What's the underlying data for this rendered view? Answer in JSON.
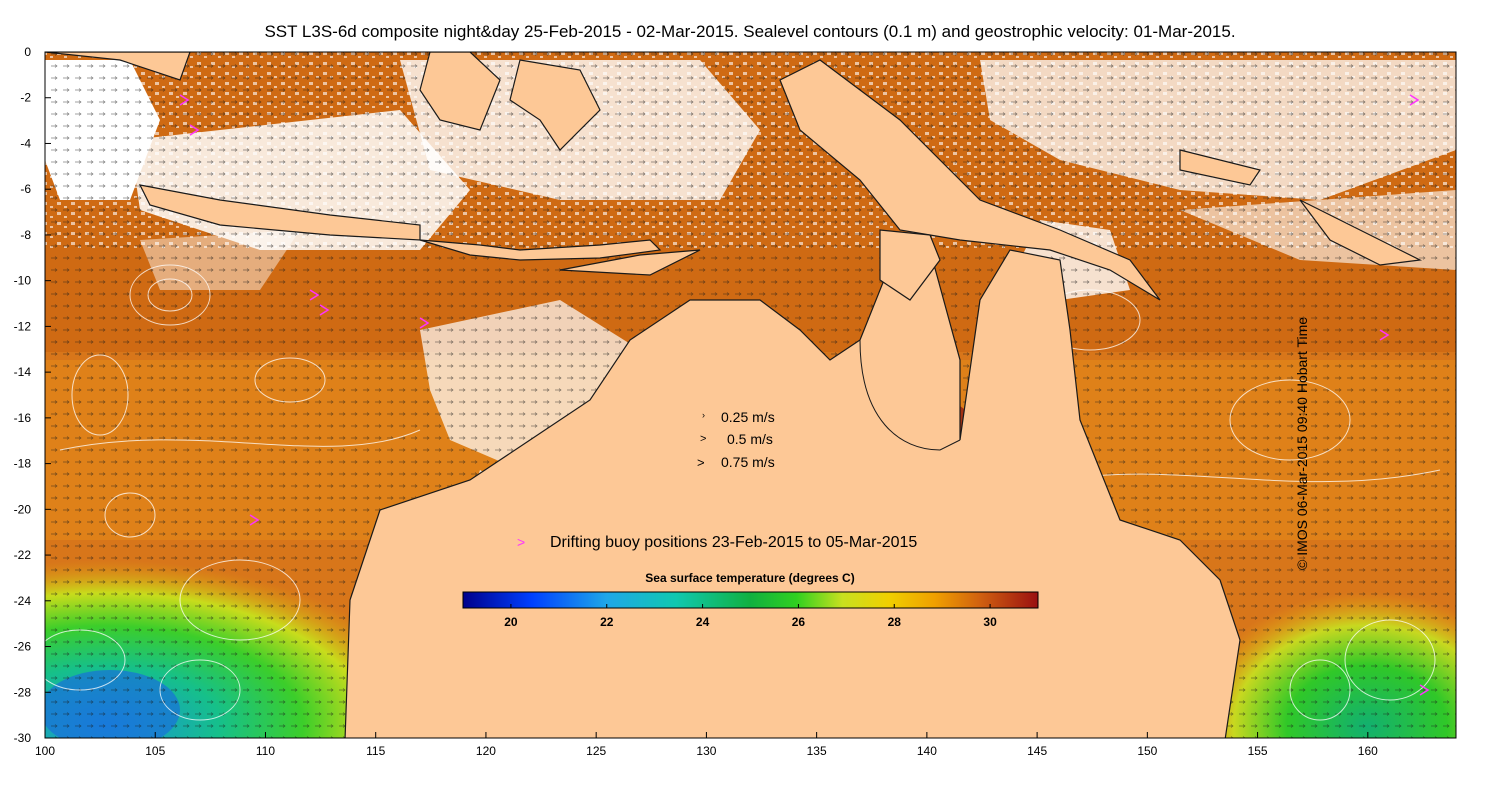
{
  "title": "SST L3S-6d composite night&day 25-Feb-2015 - 02-Mar-2015. Sealevel contours (0.1 m) and geostrophic velocity: 01-Mar-2015.",
  "credit": "© IMOS 06-Mar-2015 09:40 Hobart Time",
  "axes": {
    "x_ticks": [
      "100",
      "105",
      "110",
      "115",
      "120",
      "125",
      "130",
      "135",
      "140",
      "145",
      "150",
      "155",
      "160"
    ],
    "y_ticks": [
      "0",
      "-2",
      "-4",
      "-6",
      "-8",
      "-10",
      "-12",
      "-14",
      "-16",
      "-18",
      "-20",
      "-22",
      "-24",
      "-26",
      "-28",
      "-30"
    ],
    "lon_range": [
      100,
      164
    ],
    "lat_range": [
      -30,
      0
    ]
  },
  "velocity_legend": {
    "items": [
      {
        "label": "0.25 m/s"
      },
      {
        "label": "0.5 m/s"
      },
      {
        "label": "0.75 m/s"
      }
    ]
  },
  "buoy_legend": {
    "marker": ">",
    "label": "Drifting buoy positions 23-Feb-2015 to 05-Mar-2015"
  },
  "colorbar": {
    "title": "Sea surface temperature (degrees C)",
    "ticks": [
      "20",
      "22",
      "24",
      "26",
      "28",
      "30"
    ],
    "range": [
      19,
      31
    ]
  },
  "colors": {
    "land": "#fdc896",
    "cloud": "#ffffff",
    "buoy": "#ff33ff"
  }
}
